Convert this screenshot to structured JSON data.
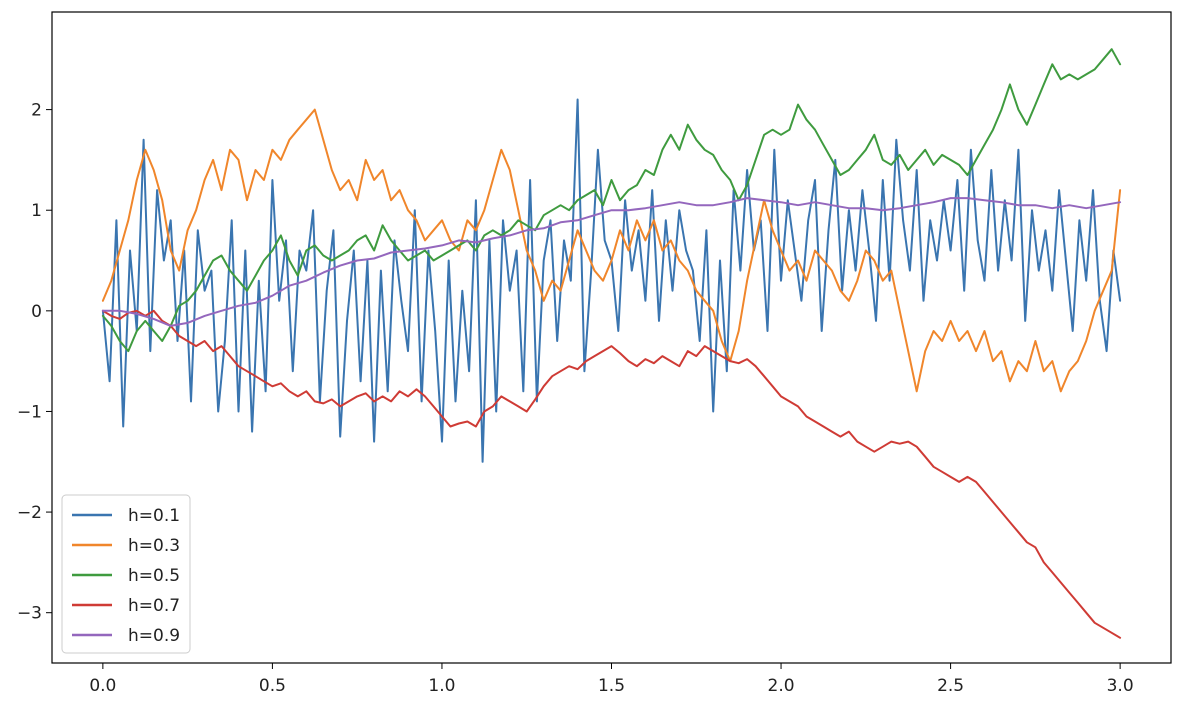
{
  "chart_data": {
    "type": "line",
    "xlim": [
      -0.15,
      3.15
    ],
    "ylim": [
      -3.5,
      2.97
    ],
    "xticks": [
      {
        "value": 0.0,
        "label": "0.0"
      },
      {
        "value": 0.5,
        "label": "0.5"
      },
      {
        "value": 1.0,
        "label": "1.0"
      },
      {
        "value": 1.5,
        "label": "1.5"
      },
      {
        "value": 2.0,
        "label": "2.0"
      },
      {
        "value": 2.5,
        "label": "2.5"
      },
      {
        "value": 3.0,
        "label": "3.0"
      }
    ],
    "yticks": [
      {
        "value": -3,
        "label": "−3"
      },
      {
        "value": -2,
        "label": "−2"
      },
      {
        "value": -1,
        "label": "−1"
      },
      {
        "value": 0,
        "label": "0"
      },
      {
        "value": 1,
        "label": "1"
      },
      {
        "value": 2,
        "label": "2"
      }
    ],
    "grid": false,
    "legend_position": "lower-left",
    "series": [
      {
        "name": "h=0.1",
        "color": "#3a75b0",
        "x": [
          0.0,
          0.02,
          0.04,
          0.06,
          0.08,
          0.1,
          0.12,
          0.14,
          0.16,
          0.18,
          0.2,
          0.22,
          0.24,
          0.26,
          0.28,
          0.3,
          0.32,
          0.34,
          0.36,
          0.38,
          0.4,
          0.42,
          0.44,
          0.46,
          0.48,
          0.5,
          0.52,
          0.54,
          0.56,
          0.58,
          0.6,
          0.62,
          0.64,
          0.66,
          0.68,
          0.7,
          0.72,
          0.74,
          0.76,
          0.78,
          0.8,
          0.82,
          0.84,
          0.86,
          0.88,
          0.9,
          0.92,
          0.94,
          0.96,
          0.98,
          1.0,
          1.02,
          1.04,
          1.06,
          1.08,
          1.1,
          1.12,
          1.14,
          1.16,
          1.18,
          1.2,
          1.22,
          1.24,
          1.26,
          1.28,
          1.3,
          1.32,
          1.34,
          1.36,
          1.38,
          1.4,
          1.42,
          1.44,
          1.46,
          1.48,
          1.5,
          1.52,
          1.54,
          1.56,
          1.58,
          1.6,
          1.62,
          1.64,
          1.66,
          1.68,
          1.7,
          1.72,
          1.74,
          1.76,
          1.78,
          1.8,
          1.82,
          1.84,
          1.86,
          1.88,
          1.9,
          1.92,
          1.94,
          1.96,
          1.98,
          2.0,
          2.02,
          2.04,
          2.06,
          2.08,
          2.1,
          2.12,
          2.14,
          2.16,
          2.18,
          2.2,
          2.22,
          2.24,
          2.26,
          2.28,
          2.3,
          2.32,
          2.34,
          2.36,
          2.38,
          2.4,
          2.42,
          2.44,
          2.46,
          2.48,
          2.5,
          2.52,
          2.54,
          2.56,
          2.58,
          2.6,
          2.62,
          2.64,
          2.66,
          2.68,
          2.7,
          2.72,
          2.74,
          2.76,
          2.78,
          2.8,
          2.82,
          2.84,
          2.86,
          2.88,
          2.9,
          2.92,
          2.94,
          2.96,
          2.98,
          3.0
        ],
        "y": [
          0.0,
          -0.7,
          0.9,
          -1.15,
          0.6,
          -0.2,
          1.7,
          -0.4,
          1.2,
          0.5,
          0.9,
          -0.3,
          0.6,
          -0.9,
          0.8,
          0.2,
          0.4,
          -1.0,
          -0.3,
          0.9,
          -1.0,
          0.6,
          -1.2,
          0.3,
          -0.8,
          1.3,
          0.1,
          0.7,
          -0.6,
          0.6,
          0.4,
          1.0,
          -0.9,
          0.2,
          0.8,
          -1.25,
          -0.1,
          0.6,
          -0.7,
          0.5,
          -1.3,
          0.4,
          -0.8,
          0.7,
          0.1,
          -0.4,
          1.0,
          -0.9,
          0.6,
          -0.2,
          -1.3,
          0.5,
          -0.9,
          0.2,
          -0.6,
          1.1,
          -1.5,
          0.7,
          -1.0,
          0.9,
          0.2,
          0.6,
          -0.8,
          1.3,
          -0.9,
          0.5,
          0.9,
          -0.3,
          0.7,
          0.3,
          2.1,
          -0.6,
          0.4,
          1.6,
          0.7,
          0.5,
          -0.2,
          1.1,
          0.4,
          0.8,
          0.1,
          1.2,
          -0.1,
          0.9,
          0.2,
          1.0,
          0.6,
          0.4,
          -0.3,
          0.8,
          -1.0,
          0.5,
          -0.6,
          1.2,
          0.4,
          1.4,
          0.6,
          0.9,
          -0.2,
          1.6,
          0.3,
          1.1,
          0.6,
          0.1,
          0.9,
          1.3,
          -0.2,
          0.8,
          1.5,
          0.2,
          1.0,
          0.4,
          1.2,
          0.6,
          -0.1,
          1.3,
          0.3,
          1.7,
          0.9,
          0.4,
          1.4,
          0.1,
          0.9,
          0.5,
          1.1,
          0.6,
          1.3,
          0.2,
          1.6,
          0.7,
          0.3,
          1.4,
          0.4,
          1.1,
          0.5,
          1.6,
          -0.1,
          1.0,
          0.4,
          0.8,
          0.2,
          1.2,
          0.5,
          -0.2,
          0.9,
          0.3,
          1.2,
          0.1,
          -0.4,
          0.6,
          0.1
        ]
      },
      {
        "name": "h=0.3",
        "color": "#f0862b",
        "x": [
          0.0,
          0.025,
          0.05,
          0.075,
          0.1,
          0.125,
          0.15,
          0.175,
          0.2,
          0.225,
          0.25,
          0.275,
          0.3,
          0.325,
          0.35,
          0.375,
          0.4,
          0.425,
          0.45,
          0.475,
          0.5,
          0.525,
          0.55,
          0.575,
          0.6,
          0.625,
          0.65,
          0.675,
          0.7,
          0.725,
          0.75,
          0.775,
          0.8,
          0.825,
          0.85,
          0.875,
          0.9,
          0.925,
          0.95,
          0.975,
          1.0,
          1.025,
          1.05,
          1.075,
          1.1,
          1.125,
          1.15,
          1.175,
          1.2,
          1.225,
          1.25,
          1.275,
          1.3,
          1.325,
          1.35,
          1.375,
          1.4,
          1.425,
          1.45,
          1.475,
          1.5,
          1.525,
          1.55,
          1.575,
          1.6,
          1.625,
          1.65,
          1.675,
          1.7,
          1.725,
          1.75,
          1.775,
          1.8,
          1.825,
          1.85,
          1.875,
          1.9,
          1.925,
          1.95,
          1.975,
          2.0,
          2.025,
          2.05,
          2.075,
          2.1,
          2.125,
          2.15,
          2.175,
          2.2,
          2.225,
          2.25,
          2.275,
          2.3,
          2.325,
          2.35,
          2.375,
          2.4,
          2.425,
          2.45,
          2.475,
          2.5,
          2.525,
          2.55,
          2.575,
          2.6,
          2.625,
          2.65,
          2.675,
          2.7,
          2.725,
          2.75,
          2.775,
          2.8,
          2.825,
          2.85,
          2.875,
          2.9,
          2.925,
          2.95,
          2.975,
          3.0
        ],
        "y": [
          0.1,
          0.3,
          0.6,
          0.9,
          1.3,
          1.6,
          1.4,
          1.1,
          0.6,
          0.4,
          0.8,
          1.0,
          1.3,
          1.5,
          1.2,
          1.6,
          1.5,
          1.1,
          1.4,
          1.3,
          1.6,
          1.5,
          1.7,
          1.8,
          1.9,
          2.0,
          1.7,
          1.4,
          1.2,
          1.3,
          1.1,
          1.5,
          1.3,
          1.4,
          1.1,
          1.2,
          1.0,
          0.9,
          0.7,
          0.8,
          0.9,
          0.7,
          0.6,
          0.9,
          0.8,
          1.0,
          1.3,
          1.6,
          1.4,
          1.0,
          0.6,
          0.4,
          0.1,
          0.3,
          0.2,
          0.5,
          0.8,
          0.6,
          0.4,
          0.3,
          0.5,
          0.8,
          0.6,
          0.9,
          0.7,
          0.9,
          0.6,
          0.7,
          0.5,
          0.4,
          0.2,
          0.1,
          0.0,
          -0.3,
          -0.5,
          -0.2,
          0.3,
          0.7,
          1.1,
          0.8,
          0.6,
          0.4,
          0.5,
          0.3,
          0.6,
          0.5,
          0.4,
          0.2,
          0.1,
          0.3,
          0.6,
          0.5,
          0.3,
          0.4,
          0.0,
          -0.4,
          -0.8,
          -0.4,
          -0.2,
          -0.3,
          -0.1,
          -0.3,
          -0.2,
          -0.4,
          -0.2,
          -0.5,
          -0.4,
          -0.7,
          -0.5,
          -0.6,
          -0.3,
          -0.6,
          -0.5,
          -0.8,
          -0.6,
          -0.5,
          -0.3,
          0.0,
          0.2,
          0.4,
          1.2
        ]
      },
      {
        "name": "h=0.5",
        "color": "#3f9b3f",
        "x": [
          0.0,
          0.025,
          0.05,
          0.075,
          0.1,
          0.125,
          0.15,
          0.175,
          0.2,
          0.225,
          0.25,
          0.275,
          0.3,
          0.325,
          0.35,
          0.375,
          0.4,
          0.425,
          0.45,
          0.475,
          0.5,
          0.525,
          0.55,
          0.575,
          0.6,
          0.625,
          0.65,
          0.675,
          0.7,
          0.725,
          0.75,
          0.775,
          0.8,
          0.825,
          0.85,
          0.875,
          0.9,
          0.925,
          0.95,
          0.975,
          1.0,
          1.025,
          1.05,
          1.075,
          1.1,
          1.125,
          1.15,
          1.175,
          1.2,
          1.225,
          1.25,
          1.275,
          1.3,
          1.325,
          1.35,
          1.375,
          1.4,
          1.425,
          1.45,
          1.475,
          1.5,
          1.525,
          1.55,
          1.575,
          1.6,
          1.625,
          1.65,
          1.675,
          1.7,
          1.725,
          1.75,
          1.775,
          1.8,
          1.825,
          1.85,
          1.875,
          1.9,
          1.925,
          1.95,
          1.975,
          2.0,
          2.025,
          2.05,
          2.075,
          2.1,
          2.125,
          2.15,
          2.175,
          2.2,
          2.225,
          2.25,
          2.275,
          2.3,
          2.325,
          2.35,
          2.375,
          2.4,
          2.425,
          2.45,
          2.475,
          2.5,
          2.525,
          2.55,
          2.575,
          2.6,
          2.625,
          2.65,
          2.675,
          2.7,
          2.725,
          2.75,
          2.775,
          2.8,
          2.825,
          2.85,
          2.875,
          2.9,
          2.925,
          2.95,
          2.975,
          3.0
        ],
        "y": [
          -0.05,
          -0.15,
          -0.3,
          -0.4,
          -0.2,
          -0.1,
          -0.2,
          -0.3,
          -0.15,
          0.05,
          0.1,
          0.2,
          0.35,
          0.5,
          0.55,
          0.4,
          0.3,
          0.2,
          0.35,
          0.5,
          0.6,
          0.75,
          0.5,
          0.35,
          0.6,
          0.65,
          0.55,
          0.5,
          0.55,
          0.6,
          0.7,
          0.75,
          0.6,
          0.85,
          0.7,
          0.6,
          0.5,
          0.55,
          0.6,
          0.5,
          0.55,
          0.6,
          0.65,
          0.7,
          0.6,
          0.75,
          0.8,
          0.75,
          0.8,
          0.9,
          0.85,
          0.8,
          0.95,
          1.0,
          1.05,
          1.0,
          1.1,
          1.15,
          1.2,
          1.05,
          1.3,
          1.1,
          1.2,
          1.25,
          1.4,
          1.35,
          1.6,
          1.75,
          1.6,
          1.85,
          1.7,
          1.6,
          1.55,
          1.4,
          1.3,
          1.1,
          1.25,
          1.5,
          1.75,
          1.8,
          1.75,
          1.8,
          2.05,
          1.9,
          1.8,
          1.65,
          1.5,
          1.35,
          1.4,
          1.5,
          1.6,
          1.75,
          1.5,
          1.45,
          1.55,
          1.4,
          1.5,
          1.6,
          1.45,
          1.55,
          1.5,
          1.45,
          1.35,
          1.5,
          1.65,
          1.8,
          2.0,
          2.25,
          2.0,
          1.85,
          2.05,
          2.25,
          2.45,
          2.3,
          2.35,
          2.3,
          2.35,
          2.4,
          2.5,
          2.6,
          2.45
        ]
      },
      {
        "name": "h=0.7",
        "color": "#cf3b35",
        "x": [
          0.0,
          0.025,
          0.05,
          0.075,
          0.1,
          0.125,
          0.15,
          0.175,
          0.2,
          0.225,
          0.25,
          0.275,
          0.3,
          0.325,
          0.35,
          0.375,
          0.4,
          0.425,
          0.45,
          0.475,
          0.5,
          0.525,
          0.55,
          0.575,
          0.6,
          0.625,
          0.65,
          0.675,
          0.7,
          0.725,
          0.75,
          0.775,
          0.8,
          0.825,
          0.85,
          0.875,
          0.9,
          0.925,
          0.95,
          0.975,
          1.0,
          1.025,
          1.05,
          1.075,
          1.1,
          1.125,
          1.15,
          1.175,
          1.2,
          1.225,
          1.25,
          1.275,
          1.3,
          1.325,
          1.35,
          1.375,
          1.4,
          1.425,
          1.45,
          1.475,
          1.5,
          1.525,
          1.55,
          1.575,
          1.6,
          1.625,
          1.65,
          1.675,
          1.7,
          1.725,
          1.75,
          1.775,
          1.8,
          1.825,
          1.85,
          1.875,
          1.9,
          1.925,
          1.95,
          1.975,
          2.0,
          2.025,
          2.05,
          2.075,
          2.1,
          2.125,
          2.15,
          2.175,
          2.2,
          2.225,
          2.25,
          2.275,
          2.3,
          2.325,
          2.35,
          2.375,
          2.4,
          2.425,
          2.45,
          2.475,
          2.5,
          2.525,
          2.55,
          2.575,
          2.6,
          2.625,
          2.65,
          2.675,
          2.7,
          2.725,
          2.75,
          2.775,
          2.8,
          2.825,
          2.85,
          2.875,
          2.9,
          2.925,
          2.95,
          2.975,
          3.0
        ],
        "y": [
          0.0,
          -0.05,
          -0.08,
          -0.02,
          0.0,
          -0.05,
          0.0,
          -0.1,
          -0.15,
          -0.25,
          -0.3,
          -0.35,
          -0.3,
          -0.4,
          -0.35,
          -0.45,
          -0.55,
          -0.6,
          -0.65,
          -0.7,
          -0.75,
          -0.72,
          -0.8,
          -0.85,
          -0.8,
          -0.9,
          -0.92,
          -0.88,
          -0.95,
          -0.9,
          -0.85,
          -0.82,
          -0.9,
          -0.85,
          -0.9,
          -0.8,
          -0.85,
          -0.78,
          -0.85,
          -0.95,
          -1.05,
          -1.15,
          -1.12,
          -1.1,
          -1.15,
          -1.0,
          -0.95,
          -0.85,
          -0.9,
          -0.95,
          -1.0,
          -0.88,
          -0.75,
          -0.65,
          -0.6,
          -0.55,
          -0.58,
          -0.5,
          -0.45,
          -0.4,
          -0.35,
          -0.42,
          -0.5,
          -0.55,
          -0.48,
          -0.52,
          -0.45,
          -0.5,
          -0.55,
          -0.4,
          -0.45,
          -0.35,
          -0.4,
          -0.45,
          -0.5,
          -0.52,
          -0.48,
          -0.55,
          -0.65,
          -0.75,
          -0.85,
          -0.9,
          -0.95,
          -1.05,
          -1.1,
          -1.15,
          -1.2,
          -1.25,
          -1.2,
          -1.3,
          -1.35,
          -1.4,
          -1.35,
          -1.3,
          -1.32,
          -1.3,
          -1.35,
          -1.45,
          -1.55,
          -1.6,
          -1.65,
          -1.7,
          -1.65,
          -1.7,
          -1.8,
          -1.9,
          -2.0,
          -2.1,
          -2.2,
          -2.3,
          -2.35,
          -2.5,
          -2.6,
          -2.7,
          -2.8,
          -2.9,
          -3.0,
          -3.1,
          -3.15,
          -3.2,
          -3.25
        ]
      },
      {
        "name": "h=0.9",
        "color": "#9467bd",
        "x": [
          0.0,
          0.05,
          0.1,
          0.15,
          0.2,
          0.25,
          0.3,
          0.35,
          0.4,
          0.45,
          0.5,
          0.55,
          0.6,
          0.65,
          0.7,
          0.75,
          0.8,
          0.85,
          0.9,
          0.95,
          1.0,
          1.05,
          1.1,
          1.15,
          1.2,
          1.25,
          1.3,
          1.35,
          1.4,
          1.45,
          1.5,
          1.55,
          1.6,
          1.65,
          1.7,
          1.75,
          1.8,
          1.85,
          1.9,
          1.95,
          2.0,
          2.05,
          2.1,
          2.15,
          2.2,
          2.25,
          2.3,
          2.35,
          2.4,
          2.45,
          2.5,
          2.55,
          2.6,
          2.65,
          2.7,
          2.75,
          2.8,
          2.85,
          2.9,
          2.95,
          3.0
        ],
        "y": [
          0.0,
          0.0,
          -0.03,
          -0.08,
          -0.15,
          -0.12,
          -0.05,
          0.0,
          0.05,
          0.08,
          0.15,
          0.25,
          0.3,
          0.38,
          0.45,
          0.5,
          0.52,
          0.58,
          0.6,
          0.62,
          0.65,
          0.7,
          0.68,
          0.72,
          0.75,
          0.8,
          0.82,
          0.88,
          0.9,
          0.95,
          1.0,
          1.0,
          1.02,
          1.05,
          1.08,
          1.05,
          1.05,
          1.08,
          1.12,
          1.1,
          1.08,
          1.05,
          1.08,
          1.05,
          1.02,
          1.02,
          1.0,
          1.02,
          1.05,
          1.08,
          1.12,
          1.12,
          1.1,
          1.08,
          1.05,
          1.05,
          1.02,
          1.05,
          1.02,
          1.05,
          1.08
        ]
      }
    ]
  }
}
